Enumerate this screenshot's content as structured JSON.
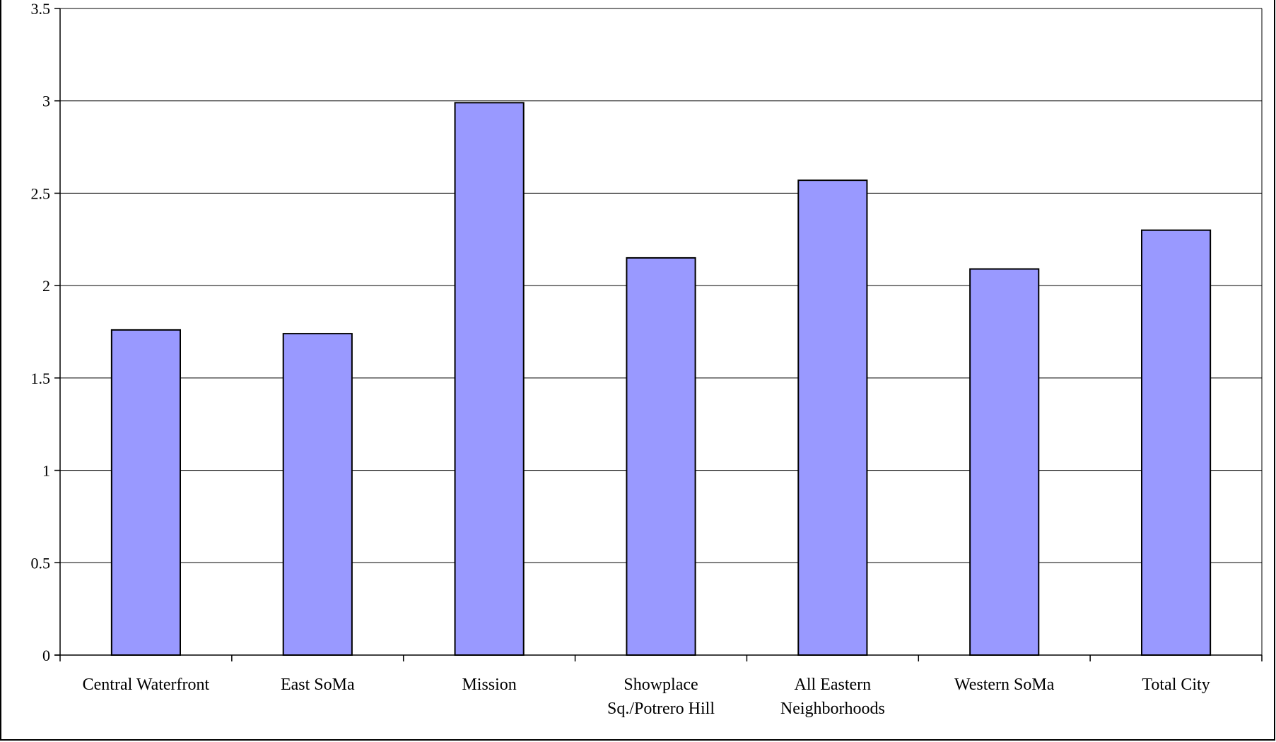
{
  "chart_data": {
    "type": "bar",
    "title": "",
    "xlabel": "",
    "ylabel": "",
    "categories": [
      [
        "Central Waterfront"
      ],
      [
        "East SoMa"
      ],
      [
        "Mission"
      ],
      [
        "Showplace",
        "Sq./Potrero Hill"
      ],
      [
        "All Eastern",
        "Neighborhoods"
      ],
      [
        "Western SoMa"
      ],
      [
        "Total City"
      ]
    ],
    "values": [
      1.76,
      1.74,
      2.99,
      2.15,
      2.57,
      2.09,
      2.3
    ],
    "ylim": [
      0,
      3.5
    ],
    "yticks": [
      "0",
      "0.5",
      "1",
      "1.5",
      "2",
      "2.5",
      "3",
      "3.5"
    ],
    "grid": true,
    "legend": "none",
    "bar_color": "#9999ff",
    "bar_edge_color": "#000000"
  }
}
